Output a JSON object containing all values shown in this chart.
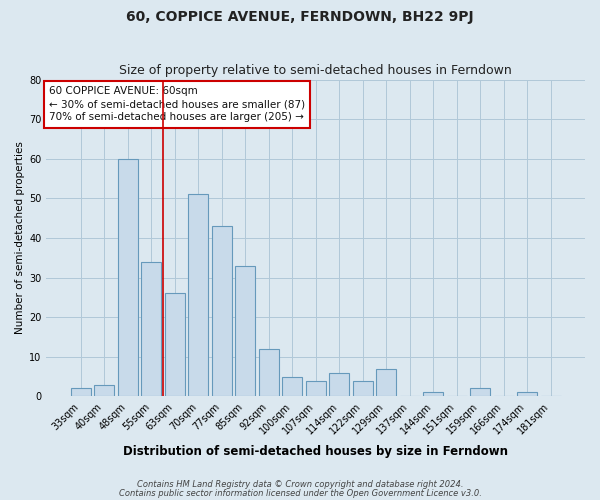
{
  "title": "60, COPPICE AVENUE, FERNDOWN, BH22 9PJ",
  "subtitle": "Size of property relative to semi-detached houses in Ferndown",
  "xlabel": "Distribution of semi-detached houses by size in Ferndown",
  "ylabel": "Number of semi-detached properties",
  "categories": [
    "33sqm",
    "40sqm",
    "48sqm",
    "55sqm",
    "63sqm",
    "70sqm",
    "77sqm",
    "85sqm",
    "92sqm",
    "100sqm",
    "107sqm",
    "114sqm",
    "122sqm",
    "129sqm",
    "137sqm",
    "144sqm",
    "151sqm",
    "159sqm",
    "166sqm",
    "174sqm",
    "181sqm"
  ],
  "values": [
    2,
    3,
    60,
    34,
    26,
    51,
    43,
    33,
    12,
    5,
    4,
    6,
    4,
    7,
    0,
    1,
    0,
    2,
    0,
    1,
    0
  ],
  "bar_color": "#c8daea",
  "bar_edge_color": "#6699bb",
  "vline_color": "#cc0000",
  "vline_pos": 3.5,
  "annotation_text": "60 COPPICE AVENUE: 60sqm\n← 30% of semi-detached houses are smaller (87)\n70% of semi-detached houses are larger (205) →",
  "annotation_box_color": "#ffffff",
  "annotation_box_edge": "#cc0000",
  "ylim": [
    0,
    80
  ],
  "yticks": [
    0,
    10,
    20,
    30,
    40,
    50,
    60,
    70,
    80
  ],
  "footnote1": "Contains HM Land Registry data © Crown copyright and database right 2024.",
  "footnote2": "Contains public sector information licensed under the Open Government Licence v3.0.",
  "bg_color": "#dce8f0",
  "plot_bg_color": "#dce8f0",
  "grid_color": "#b0c8d8",
  "title_fontsize": 10,
  "subtitle_fontsize": 9,
  "xlabel_fontsize": 8.5,
  "ylabel_fontsize": 7.5,
  "tick_fontsize": 7,
  "annotation_fontsize": 7.5,
  "footnote_fontsize": 6
}
